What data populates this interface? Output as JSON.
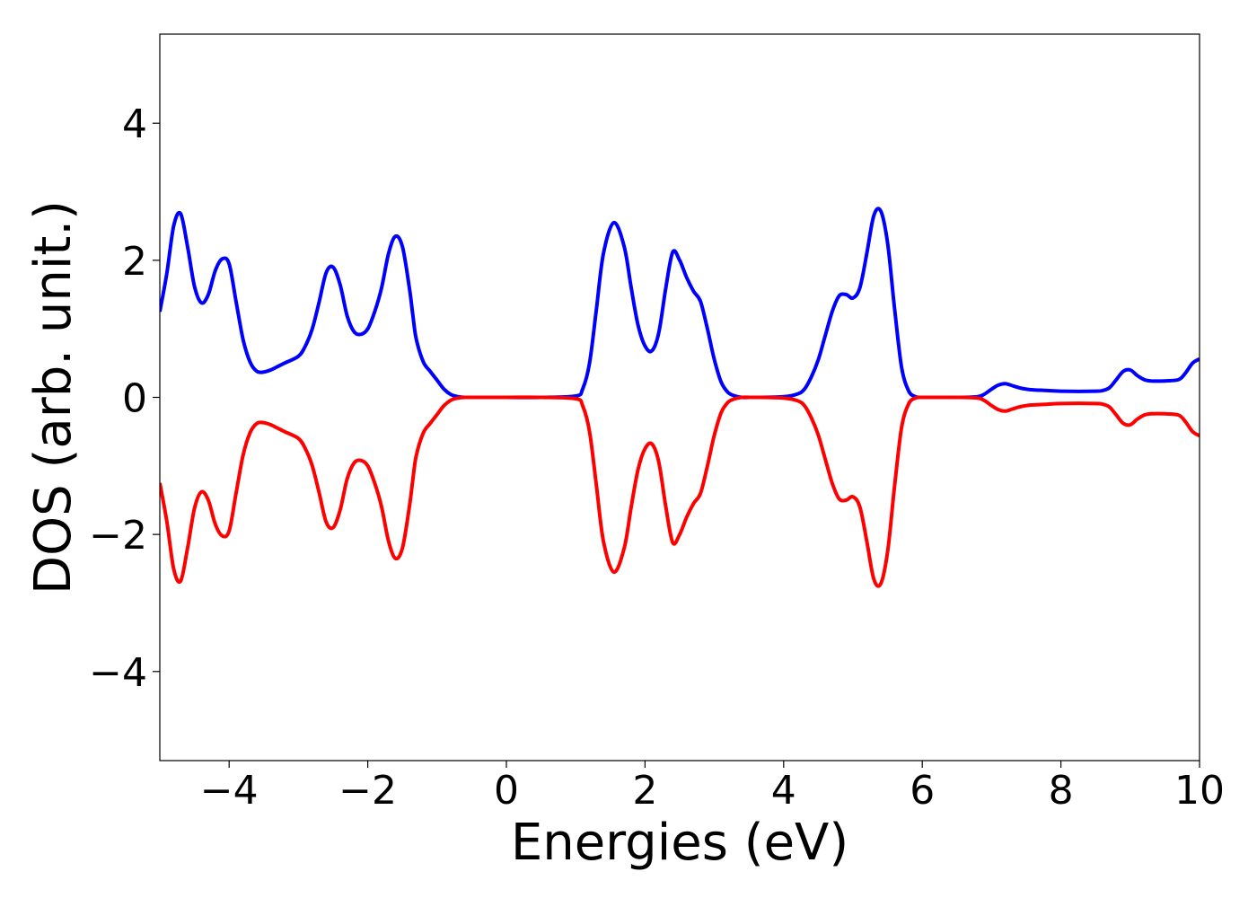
{
  "chart_data": {
    "type": "line",
    "title": "",
    "xlabel": "Energies (eV)",
    "ylabel": "DOS (arb. unit.)",
    "xlim": [
      -5,
      10
    ],
    "ylim": [
      -5.3,
      5.3
    ],
    "xticks": [
      -4,
      -2,
      0,
      2,
      4,
      6,
      8,
      10
    ],
    "yticks": [
      -4,
      -2,
      0,
      2,
      4
    ],
    "xtick_labels": [
      "−4",
      "−2",
      "0",
      "2",
      "4",
      "6",
      "8",
      "10"
    ],
    "ytick_labels": [
      "−4",
      "−2",
      "0",
      "2",
      "4"
    ],
    "grid": false,
    "legend": "none",
    "colors": {
      "spin_up": "#0000ff",
      "spin_down": "#ff0000"
    },
    "series": [
      {
        "color": "#0000ff",
        "x": [
          -5.0,
          -4.9,
          -4.8,
          -4.7,
          -4.6,
          -4.5,
          -4.4,
          -4.3,
          -4.2,
          -4.1,
          -4.0,
          -3.9,
          -3.8,
          -3.7,
          -3.6,
          -3.5,
          -3.4,
          -3.3,
          -3.2,
          -3.0,
          -2.9,
          -2.8,
          -2.7,
          -2.6,
          -2.5,
          -2.4,
          -2.3,
          -2.2,
          -2.1,
          -2.0,
          -1.9,
          -1.8,
          -1.7,
          -1.6,
          -1.5,
          -1.4,
          -1.35,
          -1.3,
          -1.2,
          -1.1,
          -1.0,
          -0.9,
          -0.8,
          -0.7,
          -0.6,
          -0.5,
          0.0,
          0.5,
          1.0,
          1.1,
          1.2,
          1.3,
          1.4,
          1.55,
          1.7,
          1.8,
          1.9,
          2.0,
          2.1,
          2.2,
          2.3,
          2.4,
          2.5,
          2.6,
          2.7,
          2.8,
          2.9,
          3.0,
          3.1,
          3.2,
          3.3,
          3.4,
          3.5,
          3.6,
          4.0,
          4.2,
          4.3,
          4.4,
          4.5,
          4.6,
          4.7,
          4.8,
          4.9,
          5.0,
          5.1,
          5.2,
          5.3,
          5.4,
          5.5,
          5.6,
          5.7,
          5.8,
          5.9,
          6.0,
          6.1,
          6.5,
          6.8,
          6.9,
          7.0,
          7.1,
          7.2,
          7.3,
          7.4,
          7.5,
          7.6,
          7.8,
          8.0,
          8.5,
          8.6,
          8.7,
          8.8,
          8.9,
          9.0,
          9.1,
          9.2,
          9.3,
          9.5,
          9.7,
          9.8,
          9.9,
          10.0
        ],
        "y": [
          1.25,
          1.8,
          2.5,
          2.68,
          2.2,
          1.62,
          1.38,
          1.5,
          1.85,
          2.02,
          1.95,
          1.4,
          0.85,
          0.52,
          0.38,
          0.37,
          0.4,
          0.45,
          0.5,
          0.6,
          0.75,
          1.0,
          1.4,
          1.82,
          1.9,
          1.65,
          1.2,
          0.96,
          0.92,
          1.0,
          1.25,
          1.6,
          2.1,
          2.35,
          2.2,
          1.6,
          1.2,
          0.85,
          0.52,
          0.38,
          0.25,
          0.12,
          0.04,
          0.01,
          0.0,
          0.0,
          0.0,
          0.0,
          0.02,
          0.12,
          0.5,
          1.3,
          2.1,
          2.55,
          2.2,
          1.6,
          1.05,
          0.75,
          0.68,
          0.95,
          1.6,
          2.12,
          2.0,
          1.75,
          1.55,
          1.4,
          1.0,
          0.55,
          0.22,
          0.07,
          0.02,
          0.0,
          0.0,
          0.0,
          0.01,
          0.05,
          0.12,
          0.3,
          0.55,
          0.9,
          1.25,
          1.48,
          1.5,
          1.45,
          1.6,
          2.1,
          2.65,
          2.72,
          2.25,
          1.3,
          0.45,
          0.1,
          0.01,
          0.0,
          0.0,
          0.0,
          0.01,
          0.05,
          0.12,
          0.18,
          0.2,
          0.17,
          0.14,
          0.12,
          0.11,
          0.1,
          0.09,
          0.09,
          0.1,
          0.14,
          0.26,
          0.38,
          0.4,
          0.32,
          0.26,
          0.24,
          0.24,
          0.26,
          0.36,
          0.5,
          0.56
        ]
      },
      {
        "color": "#ff0000",
        "x": [
          -5.0,
          -4.9,
          -4.8,
          -4.7,
          -4.6,
          -4.5,
          -4.4,
          -4.3,
          -4.2,
          -4.1,
          -4.0,
          -3.9,
          -3.8,
          -3.7,
          -3.6,
          -3.5,
          -3.4,
          -3.3,
          -3.2,
          -3.0,
          -2.9,
          -2.8,
          -2.7,
          -2.6,
          -2.5,
          -2.4,
          -2.3,
          -2.2,
          -2.1,
          -2.0,
          -1.9,
          -1.8,
          -1.7,
          -1.6,
          -1.5,
          -1.4,
          -1.35,
          -1.3,
          -1.2,
          -1.1,
          -1.0,
          -0.9,
          -0.8,
          -0.7,
          -0.6,
          -0.5,
          0.0,
          0.5,
          1.0,
          1.1,
          1.2,
          1.3,
          1.4,
          1.55,
          1.7,
          1.8,
          1.9,
          2.0,
          2.1,
          2.2,
          2.3,
          2.4,
          2.5,
          2.6,
          2.7,
          2.8,
          2.9,
          3.0,
          3.1,
          3.2,
          3.3,
          3.4,
          3.5,
          3.6,
          4.0,
          4.2,
          4.3,
          4.4,
          4.5,
          4.6,
          4.7,
          4.8,
          4.9,
          5.0,
          5.1,
          5.2,
          5.3,
          5.4,
          5.5,
          5.6,
          5.7,
          5.8,
          5.9,
          6.0,
          6.1,
          6.5,
          6.8,
          6.9,
          7.0,
          7.1,
          7.2,
          7.3,
          7.4,
          7.5,
          7.6,
          7.8,
          8.0,
          8.5,
          8.6,
          8.7,
          8.8,
          8.9,
          9.0,
          9.1,
          9.2,
          9.3,
          9.5,
          9.7,
          9.8,
          9.9,
          10.0
        ],
        "y": [
          -1.25,
          -1.8,
          -2.5,
          -2.68,
          -2.2,
          -1.62,
          -1.38,
          -1.5,
          -1.85,
          -2.02,
          -1.95,
          -1.4,
          -0.85,
          -0.52,
          -0.38,
          -0.37,
          -0.4,
          -0.45,
          -0.5,
          -0.6,
          -0.75,
          -1.0,
          -1.4,
          -1.82,
          -1.9,
          -1.65,
          -1.2,
          -0.96,
          -0.92,
          -1.0,
          -1.25,
          -1.6,
          -2.1,
          -2.35,
          -2.2,
          -1.6,
          -1.2,
          -0.85,
          -0.52,
          -0.38,
          -0.25,
          -0.12,
          -0.04,
          -0.01,
          0.0,
          0.0,
          0.0,
          0.0,
          -0.02,
          -0.12,
          -0.5,
          -1.3,
          -2.1,
          -2.55,
          -2.2,
          -1.6,
          -1.05,
          -0.75,
          -0.68,
          -0.95,
          -1.6,
          -2.12,
          -2.0,
          -1.75,
          -1.55,
          -1.4,
          -1.0,
          -0.55,
          -0.22,
          -0.07,
          -0.02,
          0.0,
          0.0,
          0.0,
          -0.01,
          -0.05,
          -0.12,
          -0.3,
          -0.55,
          -0.9,
          -1.25,
          -1.48,
          -1.5,
          -1.45,
          -1.6,
          -2.1,
          -2.65,
          -2.72,
          -2.25,
          -1.3,
          -0.45,
          -0.1,
          -0.01,
          0.0,
          0.0,
          0.0,
          -0.01,
          -0.05,
          -0.12,
          -0.18,
          -0.2,
          -0.17,
          -0.14,
          -0.12,
          -0.11,
          -0.1,
          -0.09,
          -0.09,
          -0.1,
          -0.14,
          -0.26,
          -0.38,
          -0.4,
          -0.32,
          -0.26,
          -0.24,
          -0.24,
          -0.26,
          -0.36,
          -0.5,
          -0.56
        ]
      }
    ]
  }
}
